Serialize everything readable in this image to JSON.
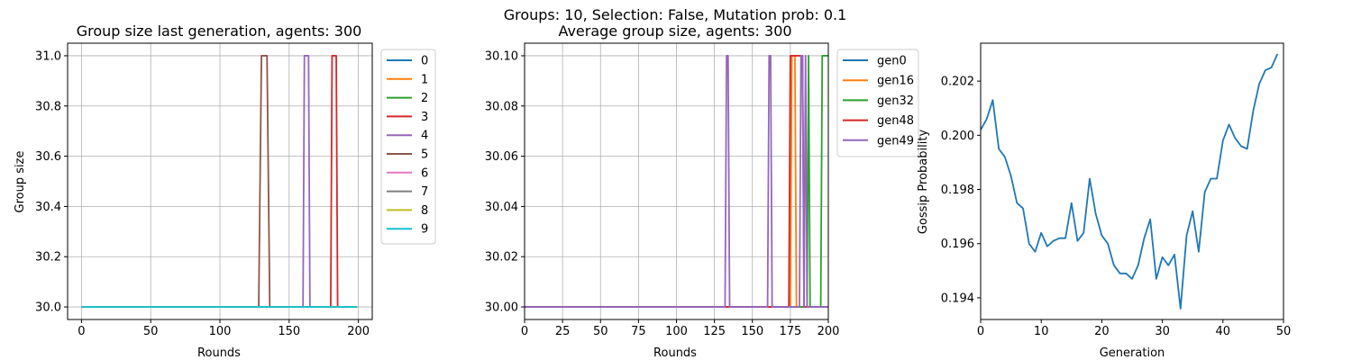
{
  "figure": {
    "suptitle": "Groups: 10, Selection: False, Mutation prob: 0.1"
  },
  "chart_data": [
    {
      "type": "line",
      "title": "Group size last generation, agents: 300",
      "xlabel": "Rounds",
      "ylabel": "Group size",
      "xlim": [
        -10,
        210
      ],
      "ylim": [
        29.95,
        31.05
      ],
      "xticks": [
        0,
        50,
        100,
        150,
        200
      ],
      "xtick_labels": [
        "0",
        "50",
        "100",
        "150",
        "200"
      ],
      "yticks": [
        30.0,
        30.2,
        30.4,
        30.6,
        30.8,
        31.0
      ],
      "ytick_labels": [
        "30.0",
        "30.2",
        "30.4",
        "30.6",
        "30.8",
        "31.0"
      ],
      "grid": true,
      "legend_position": "outside right",
      "series": [
        {
          "name": "0",
          "color": "#1f77b4",
          "x": [
            0,
            199
          ],
          "y": [
            30,
            30
          ]
        },
        {
          "name": "1",
          "color": "#ff7f0e",
          "x": [
            0,
            199
          ],
          "y": [
            30,
            30
          ]
        },
        {
          "name": "2",
          "color": "#2ca02c",
          "x": [
            0,
            199
          ],
          "y": [
            30,
            30
          ]
        },
        {
          "name": "3",
          "color": "#d62728",
          "x": [
            0,
            180,
            181,
            184,
            185,
            199
          ],
          "y": [
            30,
            30,
            31,
            31,
            30,
            30
          ]
        },
        {
          "name": "4",
          "color": "#9467bd",
          "x": [
            0,
            160,
            161,
            164,
            165,
            199
          ],
          "y": [
            30,
            30,
            31,
            31,
            30,
            30
          ]
        },
        {
          "name": "5",
          "color": "#8c564b",
          "x": [
            0,
            128,
            130,
            134,
            136,
            199
          ],
          "y": [
            30,
            30,
            31,
            31,
            30,
            30
          ]
        },
        {
          "name": "6",
          "color": "#e377c2",
          "x": [
            0,
            199
          ],
          "y": [
            30,
            30
          ]
        },
        {
          "name": "7",
          "color": "#7f7f7f",
          "x": [
            0,
            199
          ],
          "y": [
            30,
            30
          ]
        },
        {
          "name": "8",
          "color": "#bcbd22",
          "x": [
            0,
            199
          ],
          "y": [
            30,
            30
          ]
        },
        {
          "name": "9",
          "color": "#17becf",
          "x": [
            0,
            199
          ],
          "y": [
            30,
            30
          ]
        }
      ]
    },
    {
      "type": "line",
      "title": "Average group size, agents: 300",
      "xlabel": "Rounds",
      "ylabel": "",
      "xlim": [
        0,
        200
      ],
      "ylim": [
        29.995,
        30.105
      ],
      "xticks": [
        0,
        25,
        50,
        75,
        100,
        125,
        150,
        175,
        200
      ],
      "xtick_labels": [
        "0",
        "25",
        "50",
        "75",
        "100",
        "125",
        "150",
        "175",
        "200"
      ],
      "yticks": [
        30.0,
        30.02,
        30.04,
        30.06,
        30.08,
        30.1
      ],
      "ytick_labels": [
        "30.00",
        "30.02",
        "30.04",
        "30.06",
        "30.08",
        "30.10"
      ],
      "grid": true,
      "legend_position": "outside right",
      "series": [
        {
          "name": "gen0",
          "color": "#1f77b4",
          "x": [
            0,
            200
          ],
          "y": [
            30,
            30
          ]
        },
        {
          "name": "gen16",
          "color": "#ff7f0e",
          "x": [
            0,
            175,
            176,
            178,
            179,
            200
          ],
          "y": [
            30,
            30,
            30.1,
            30.1,
            30,
            30
          ]
        },
        {
          "name": "gen32",
          "color": "#2ca02c",
          "x": [
            0,
            186,
            187,
            188,
            195,
            196,
            200
          ],
          "y": [
            30,
            30,
            30.1,
            30,
            30,
            30.1,
            30.1
          ]
        },
        {
          "name": "gen48",
          "color": "#d62728",
          "x": [
            0,
            174,
            175,
            183,
            184,
            200
          ],
          "y": [
            30,
            30,
            30.1,
            30.1,
            30,
            30
          ]
        },
        {
          "name": "gen49",
          "color": "#9467bd",
          "x": [
            0,
            132,
            133,
            134,
            135,
            160,
            161,
            162,
            163,
            181,
            182,
            183,
            184,
            185,
            186,
            200
          ],
          "y": [
            30,
            30,
            30.1,
            30.1,
            30,
            30,
            30.1,
            30.1,
            30,
            30,
            30.1,
            30.1,
            30,
            30.1,
            30,
            30
          ]
        }
      ]
    },
    {
      "type": "line",
      "title": "",
      "xlabel": "Generation",
      "ylabel": "Gossip Probability",
      "xlim": [
        0,
        50
      ],
      "ylim": [
        0.1932,
        0.2034
      ],
      "xticks": [
        0,
        10,
        20,
        30,
        40,
        50
      ],
      "xtick_labels": [
        "0",
        "10",
        "20",
        "30",
        "40",
        "50"
      ],
      "yticks": [
        0.194,
        0.196,
        0.198,
        0.2,
        0.202
      ],
      "ytick_labels": [
        "0.194",
        "0.196",
        "0.198",
        "0.200",
        "0.202"
      ],
      "grid": false,
      "series": [
        {
          "name": "",
          "color": "#1f77b4",
          "x": [
            0,
            1,
            2,
            3,
            4,
            5,
            6,
            7,
            8,
            9,
            10,
            11,
            12,
            13,
            14,
            15,
            16,
            17,
            18,
            19,
            20,
            21,
            22,
            23,
            24,
            25,
            26,
            27,
            28,
            29,
            30,
            31,
            32,
            33,
            34,
            35,
            36,
            37,
            38,
            39,
            40,
            41,
            42,
            43,
            44,
            45,
            46,
            47,
            48,
            49
          ],
          "y": [
            0.2002,
            0.2006,
            0.2013,
            0.1995,
            0.1992,
            0.1985,
            0.1975,
            0.1973,
            0.196,
            0.1957,
            0.1964,
            0.1959,
            0.1961,
            0.1962,
            0.1962,
            0.1975,
            0.1961,
            0.1964,
            0.1984,
            0.1971,
            0.1963,
            0.196,
            0.1952,
            0.1949,
            0.1949,
            0.1947,
            0.1952,
            0.1962,
            0.1969,
            0.1947,
            0.1955,
            0.1952,
            0.1956,
            0.1936,
            0.1963,
            0.1972,
            0.1957,
            0.1979,
            0.1984,
            0.1984,
            0.1998,
            0.2004,
            0.1999,
            0.1996,
            0.1995,
            0.2009,
            0.2019,
            0.2024,
            0.2025,
            0.203
          ]
        }
      ]
    }
  ]
}
